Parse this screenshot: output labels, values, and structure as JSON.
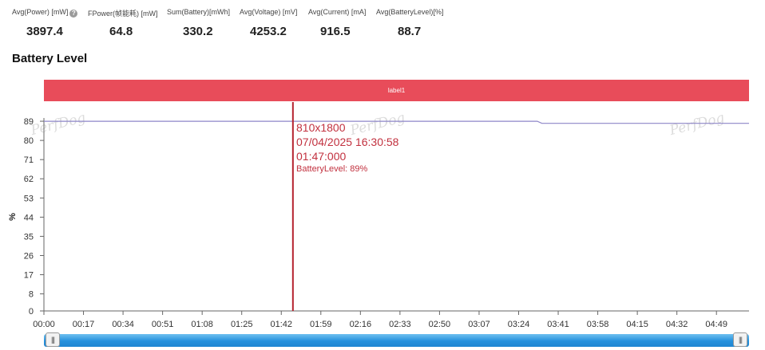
{
  "stats": [
    {
      "label": "Avg(Power) [mW]",
      "value": "3897.4",
      "help": "?"
    },
    {
      "label": "FPower(帧能耗) [mW]",
      "value": "64.8"
    },
    {
      "label": "Sum(Battery)[mWh]",
      "value": "330.2"
    },
    {
      "label": "Avg(Voltage) [mV]",
      "value": "4253.2"
    },
    {
      "label": "Avg(Current) [mA]",
      "value": "916.5"
    },
    {
      "label": "Avg(BatteryLevel)[%]",
      "value": "88.7"
    }
  ],
  "section_title": "Battery Level",
  "label_band": "label1",
  "watermark": "PerfDog",
  "chart_data": {
    "type": "line",
    "ylabel": "%",
    "ylim": [
      0,
      98
    ],
    "y_ticks": [
      "0",
      "8",
      "17",
      "26",
      "35",
      "44",
      "53",
      "62",
      "71",
      "80",
      "89"
    ],
    "x_ticks": [
      "00:00",
      "00:17",
      "00:34",
      "00:51",
      "01:08",
      "01:25",
      "01:42",
      "01:59",
      "02:16",
      "02:33",
      "02:50",
      "03:07",
      "03:24",
      "03:41",
      "03:58",
      "04:15",
      "04:32",
      "04:49"
    ],
    "x_range_seconds": [
      0,
      303
    ],
    "series": [
      {
        "points": [
          [
            0,
            89
          ],
          [
            212,
            89
          ],
          [
            214,
            88
          ],
          [
            303,
            88
          ]
        ],
        "color": "#8e86c8"
      }
    ],
    "cursor": {
      "x_seconds": 107,
      "color": "#b5222e"
    },
    "tooltip": {
      "resolution": "810x1800",
      "datetime": "07/04/2025 16:30:58",
      "elapsed": "01:47:000",
      "value_text": "BatteryLevel: 89%"
    }
  },
  "scrollbar": {
    "left_grip": "|||",
    "right_grip": "|||"
  }
}
